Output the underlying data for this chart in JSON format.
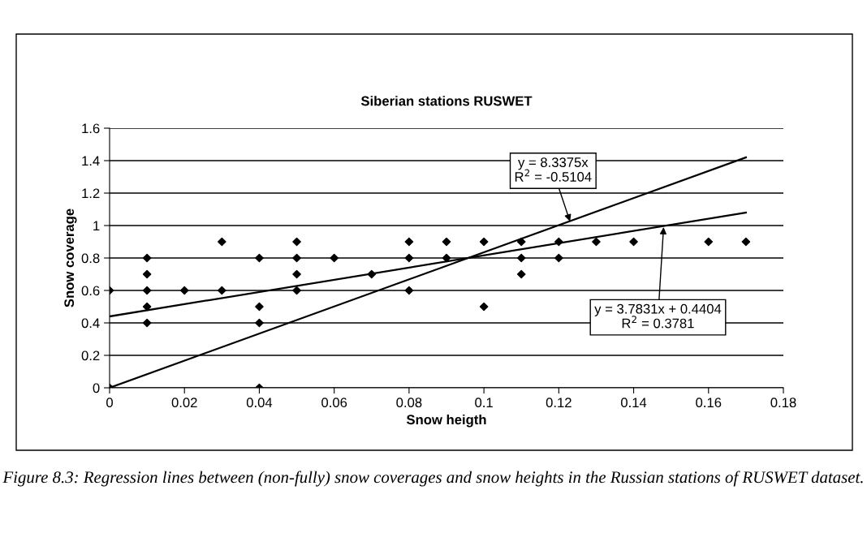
{
  "chart_data": {
    "type": "scatter",
    "title": "Siberian stations RUSWET",
    "xlabel": "Snow heigth",
    "ylabel": "Snow coverage",
    "series": [
      {
        "color": "#000000",
        "marker": "diamond",
        "x": [
          0,
          0,
          0.01,
          0.01,
          0.01,
          0.01,
          0.01,
          0.02,
          0.03,
          0.03,
          0.04,
          0.04,
          0.04,
          0.04,
          0.05,
          0.05,
          0.05,
          0.05,
          0.06,
          0.07,
          0.08,
          0.08,
          0.08,
          0.09,
          0.09,
          0.1,
          0.1,
          0.11,
          0.11,
          0.11,
          0.12,
          0.12,
          0.13,
          0.14,
          0.16,
          0.17
        ],
        "values": [
          0.6,
          0,
          0.8,
          0.7,
          0.6,
          0.5,
          0.4,
          0.6,
          0.9,
          0.6,
          0.8,
          0.5,
          0.4,
          0,
          0.9,
          0.8,
          0.7,
          0.6,
          0.8,
          0.7,
          0.9,
          0.8,
          0.6,
          0.9,
          0.8,
          0.9,
          0.5,
          0.9,
          0.8,
          0.7,
          0.9,
          0.8,
          0.9,
          0.9,
          0.9,
          0.9
        ]
      },
      {
        "type": "line",
        "color": "#000000",
        "marker": "none",
        "line_style": "solid",
        "x": [
          0,
          0.17
        ],
        "values": [
          0,
          1.42
        ]
      },
      {
        "type": "line",
        "color": "#000000",
        "marker": "none",
        "line_style": "solid",
        "x": [
          0,
          0.17
        ],
        "values": [
          0.44,
          1.08
        ]
      }
    ],
    "xlim": [
      0,
      0.18
    ],
    "xticks": [
      0,
      0.02,
      0.04,
      0.06,
      0.08,
      0.1,
      0.12,
      0.14,
      0.16,
      0.18
    ],
    "ylim": [
      0,
      1.6
    ],
    "yticks": [
      0,
      0.2,
      0.4,
      0.6,
      0.8,
      1,
      1.2,
      1.4,
      1.6
    ],
    "grid": "y",
    "legend": false,
    "annotations": [
      {
        "text": "y = 8.3375x\nR$^{2}$ = -0.5104",
        "x": 0.123,
        "y": 1.025
      },
      {
        "text": "y = 3.7831x + 0.4404\nR$^{2}$ = 0.3781",
        "x": 0.148,
        "y": 0.99
      },
      "Figure 8.3: Regression lines between (non-fully) snow coverages and snow heights in the Russian stations of RUSWET dataset."
    ]
  }
}
